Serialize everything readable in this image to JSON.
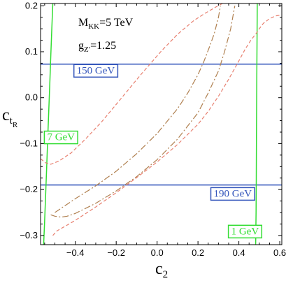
{
  "chart_data": {
    "type": "line",
    "title": "",
    "xlabel": "c",
    "xlabel_sub": "2",
    "ylabel": "c",
    "ylabel_sub": "t",
    "ylabel_subsub": "R",
    "xlim": [
      -0.57,
      0.61
    ],
    "ylim": [
      -0.32,
      0.205
    ],
    "xticks": [
      -0.4,
      -0.2,
      0.0,
      0.2,
      0.4,
      0.6
    ],
    "xtick_labels": [
      "−0.4",
      "−0.2",
      "0.0",
      "0.2",
      "0.4",
      "0.6"
    ],
    "yticks": [
      -0.3,
      -0.2,
      -0.1,
      0.0,
      0.1,
      0.2
    ],
    "ytick_labels": [
      "−0.3",
      "−0.2",
      "−0.1",
      "0.0",
      "0.1",
      "0.2"
    ],
    "grid": false,
    "annotations": {
      "mkk": {
        "main": "M",
        "sub": "KK",
        "rest": "=5 TeV"
      },
      "gz": {
        "main": "g",
        "sub": "Z′",
        "rest": "=1.25"
      }
    },
    "series": [
      {
        "label": "150 GeV",
        "style": "solid",
        "color": "#3355bb",
        "label_at": [
          -0.3,
          0.06
        ],
        "x": [
          -0.57,
          0.61
        ],
        "y": [
          0.073,
          0.073
        ]
      },
      {
        "label": "190 GeV",
        "style": "solid",
        "color": "#3355bb",
        "label_at": [
          0.37,
          -0.208
        ],
        "x": [
          -0.57,
          0.61
        ],
        "y": [
          -0.19,
          -0.19
        ]
      },
      {
        "label": "7 GeV",
        "style": "solid",
        "color": "#33dd33",
        "label_at": [
          -0.47,
          -0.085
        ],
        "x": [
          -0.555,
          -0.55,
          -0.545,
          -0.54,
          -0.535,
          -0.53,
          -0.525,
          -0.52,
          -0.515,
          -0.51
        ],
        "y": [
          -0.32,
          -0.27,
          -0.21,
          -0.15,
          -0.09,
          -0.03,
          0.03,
          0.09,
          0.15,
          0.205
        ]
      },
      {
        "label": "1 GeV",
        "style": "solid",
        "color": "#33dd33",
        "label_at": [
          0.43,
          -0.29
        ],
        "x": [
          0.482,
          0.484,
          0.485,
          0.486,
          0.487,
          0.488,
          0.489,
          0.49
        ],
        "y": [
          -0.32,
          -0.25,
          -0.18,
          -0.1,
          -0.02,
          0.06,
          0.13,
          0.205
        ]
      },
      {
        "style": "dashed",
        "color": "#e88070",
        "x": [
          -0.57,
          -0.545,
          -0.52,
          -0.48,
          -0.42,
          -0.35,
          -0.27,
          -0.18,
          -0.08,
          0.02,
          0.1,
          0.18,
          0.24,
          0.29,
          0.32
        ],
        "y": [
          -0.133,
          -0.142,
          -0.145,
          -0.138,
          -0.12,
          -0.09,
          -0.052,
          -0.004,
          0.05,
          0.101,
          0.138,
          0.168,
          0.185,
          0.198,
          0.205
        ]
      },
      {
        "style": "dashed",
        "color": "#e88070",
        "x": [
          -0.51,
          -0.49,
          -0.45,
          -0.4,
          -0.3,
          -0.2,
          -0.1,
          0.0,
          0.1,
          0.2,
          0.25,
          0.3,
          0.35,
          0.4,
          0.43,
          0.46,
          0.485,
          0.5,
          0.52,
          0.55,
          0.58,
          0.61
        ],
        "y": [
          -0.3,
          -0.29,
          -0.28,
          -0.267,
          -0.238,
          -0.207,
          -0.174,
          -0.14,
          -0.102,
          -0.058,
          -0.03,
          0.003,
          0.04,
          0.08,
          0.105,
          0.126,
          0.14,
          0.15,
          0.162,
          0.172,
          0.178,
          0.18
        ]
      },
      {
        "style": "dashdot",
        "color": "#b08050",
        "x": [
          -0.5,
          -0.45,
          -0.4,
          -0.3,
          -0.2,
          -0.1,
          0.0,
          0.1,
          0.15,
          0.2,
          0.23,
          0.26,
          0.28,
          0.3,
          0.31
        ],
        "y": [
          -0.25,
          -0.235,
          -0.22,
          -0.192,
          -0.16,
          -0.122,
          -0.078,
          -0.024,
          0.01,
          0.05,
          0.08,
          0.115,
          0.14,
          0.175,
          0.2
        ]
      },
      {
        "style": "dashdot",
        "color": "#b08050",
        "x": [
          -0.52,
          -0.5,
          -0.47,
          -0.44,
          -0.4,
          -0.3,
          -0.2,
          -0.1,
          0.0,
          0.1,
          0.2,
          0.25,
          0.3,
          0.33,
          0.36,
          0.38
        ],
        "y": [
          -0.255,
          -0.258,
          -0.26,
          -0.258,
          -0.252,
          -0.23,
          -0.203,
          -0.172,
          -0.135,
          -0.09,
          -0.033,
          0.01,
          0.058,
          0.1,
          0.15,
          0.2
        ]
      }
    ]
  }
}
